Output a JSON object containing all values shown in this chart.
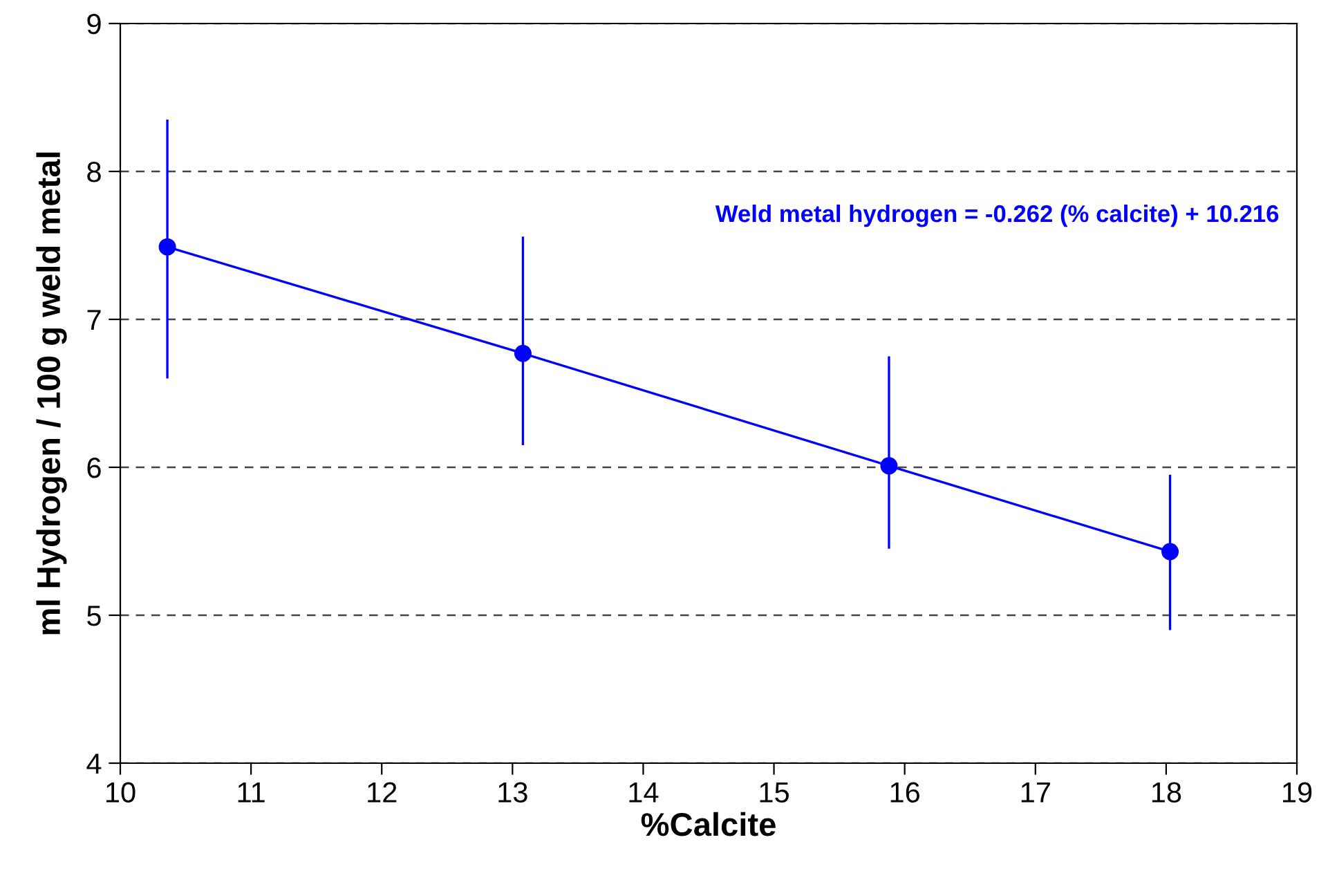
{
  "chart_data": {
    "type": "line",
    "xlabel": "%Calcite",
    "ylabel": "ml Hydrogen / 100 g weld metal",
    "x": [
      10.36,
      13.08,
      15.88,
      18.03
    ],
    "series": [
      {
        "color": "#0000ff",
        "values": [
          7.49,
          6.77,
          6.01,
          5.43
        ],
        "errors": [
          [
            6.6,
            8.35
          ],
          [
            6.15,
            7.56
          ],
          [
            5.45,
            6.75
          ],
          [
            4.9,
            5.95
          ]
        ]
      }
    ],
    "marker": "circle",
    "line_style": "solid",
    "xlim": [
      10,
      19
    ],
    "xticks": [
      10,
      11,
      12,
      13,
      14,
      15,
      16,
      17,
      18,
      19
    ],
    "ylim": [
      4,
      9
    ],
    "yticks": [
      4,
      5,
      6,
      7,
      8,
      9
    ],
    "grid": "y",
    "annotations": [
      "Weld metal hydrogen = -0.262 (% calcite) + 10.216"
    ]
  }
}
